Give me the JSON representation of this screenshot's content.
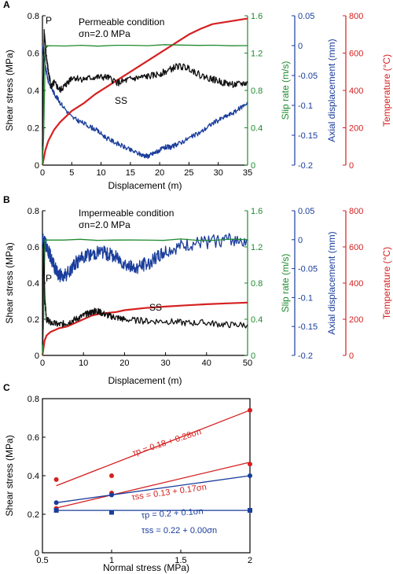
{
  "colors": {
    "shear": "#111111",
    "slip": "#1f8a2e",
    "axial": "#1a3d9c",
    "temp": "#d62020",
    "axis": "#000000"
  },
  "chart_data": [
    {
      "panel": "A",
      "type": "line",
      "annotation_condition": "Permeable condition",
      "annotation_stress": "σn=2.0 MPa",
      "xlabel": "Displacement (m)",
      "xlim": [
        0,
        35
      ],
      "xticks": [
        0,
        5,
        10,
        15,
        20,
        25,
        30,
        35
      ],
      "axes": {
        "shear": {
          "label": "Shear stress (MPa)",
          "lim": [
            0,
            0.8
          ],
          "ticks": [
            0,
            0.2,
            0.4,
            0.6,
            0.8
          ]
        },
        "slip": {
          "label": "Slip rate (m/s)",
          "lim": [
            0,
            1.6
          ],
          "ticks": [
            0,
            0.4,
            0.8,
            1.2,
            1.6
          ]
        },
        "axial": {
          "label": "Axial displacement (mm)",
          "lim": [
            -0.2,
            0.05
          ],
          "ticks": [
            -0.2,
            -0.15,
            -0.1,
            -0.05,
            0,
            0.05
          ]
        },
        "temp": {
          "label": "Temperature (°C)",
          "lim": [
            0,
            800
          ],
          "ticks": [
            0,
            200,
            400,
            600,
            800
          ]
        }
      },
      "labels": {
        "peak": "P",
        "steady": "SS"
      },
      "series": {
        "shear": {
          "x": [
            0,
            0.3,
            0.6,
            1,
            1.5,
            2,
            3,
            4,
            5,
            7,
            9,
            11,
            13,
            15,
            17,
            19,
            21,
            23,
            25,
            27,
            29,
            31,
            33,
            35
          ],
          "y": [
            0.1,
            0.72,
            0.6,
            0.5,
            0.42,
            0.44,
            0.4,
            0.43,
            0.47,
            0.46,
            0.47,
            0.47,
            0.44,
            0.46,
            0.47,
            0.48,
            0.5,
            0.53,
            0.52,
            0.48,
            0.46,
            0.44,
            0.43,
            0.44
          ]
        },
        "slip": {
          "x": [
            0,
            0.2,
            0.5,
            1,
            35
          ],
          "y": [
            0,
            0.3,
            1.26,
            1.28,
            1.28
          ]
        },
        "axial": {
          "x": [
            0,
            0.5,
            1,
            2,
            3,
            5,
            7,
            9,
            11,
            13,
            15,
            17,
            18,
            19,
            20,
            21,
            22,
            23,
            25,
            27,
            29,
            31,
            33,
            35
          ],
          "y": [
            0.0,
            -0.035,
            -0.06,
            -0.08,
            -0.095,
            -0.12,
            -0.13,
            -0.14,
            -0.155,
            -0.165,
            -0.175,
            -0.183,
            -0.185,
            -0.18,
            -0.175,
            -0.17,
            -0.17,
            -0.165,
            -0.155,
            -0.145,
            -0.13,
            -0.12,
            -0.11,
            -0.095
          ]
        },
        "temp": {
          "x": [
            0,
            0.5,
            1,
            2,
            3,
            5,
            7,
            9,
            11,
            13,
            15,
            17,
            19,
            21,
            23,
            25,
            27,
            29,
            31,
            33,
            35
          ],
          "y": [
            0,
            80,
            130,
            190,
            230,
            290,
            330,
            380,
            420,
            460,
            500,
            540,
            580,
            620,
            660,
            700,
            730,
            755,
            765,
            775,
            785
          ]
        }
      }
    },
    {
      "panel": "B",
      "type": "line",
      "annotation_condition": "Impermeable condition",
      "annotation_stress": "σn=2.0 MPa",
      "xlabel": "Displacement (m)",
      "xlim": [
        0,
        50
      ],
      "xticks": [
        0,
        10,
        20,
        30,
        40,
        50
      ],
      "axes": {
        "shear": {
          "label": "Shear stress (MPa)",
          "lim": [
            0,
            0.8
          ],
          "ticks": [
            0,
            0.2,
            0.4,
            0.6,
            0.8
          ]
        },
        "slip": {
          "label": "Slip rate (m/s)",
          "lim": [
            0,
            1.6
          ],
          "ticks": [
            0,
            0.4,
            0.8,
            1.2,
            1.6
          ]
        },
        "axial": {
          "label": "Axial displacement (mm)",
          "lim": [
            -0.2,
            0.05
          ],
          "ticks": [
            -0.2,
            -0.15,
            -0.1,
            -0.05,
            0,
            0.05
          ]
        },
        "temp": {
          "label": "Temperature (°C)",
          "lim": [
            0,
            800
          ],
          "ticks": [
            0,
            200,
            400,
            600,
            800
          ]
        }
      },
      "labels": {
        "peak": "P",
        "steady": "SS"
      },
      "series": {
        "shear": {
          "x": [
            0,
            0.3,
            0.6,
            1,
            2,
            4,
            6,
            8,
            10,
            12,
            13,
            14,
            16,
            18,
            20,
            25,
            30,
            35,
            40,
            45,
            50
          ],
          "y": [
            0.05,
            0.62,
            0.3,
            0.2,
            0.18,
            0.17,
            0.18,
            0.2,
            0.22,
            0.24,
            0.245,
            0.24,
            0.22,
            0.21,
            0.2,
            0.19,
            0.19,
            0.18,
            0.18,
            0.17,
            0.17
          ]
        },
        "slip": {
          "x": [
            0,
            0.3,
            0.6,
            1,
            50
          ],
          "y": [
            0,
            0.4,
            1.26,
            1.28,
            1.28
          ]
        },
        "axial": {
          "x": [
            0,
            1,
            2,
            3,
            4,
            5,
            6,
            8,
            10,
            12,
            14,
            16,
            18,
            20,
            22,
            24,
            26,
            28,
            30,
            35,
            40,
            45,
            50
          ],
          "y": [
            0.0,
            -0.01,
            -0.03,
            -0.05,
            -0.06,
            -0.065,
            -0.06,
            -0.04,
            -0.03,
            -0.025,
            -0.02,
            -0.025,
            -0.03,
            -0.04,
            -0.05,
            -0.045,
            -0.04,
            -0.03,
            -0.02,
            -0.01,
            -0.005,
            0.0,
            0.0
          ],
          "noise_amplitude": 0.012
        },
        "temp": {
          "x": [
            0,
            0.5,
            1,
            2,
            4,
            6,
            8,
            10,
            12,
            14,
            16,
            18,
            20,
            25,
            30,
            35,
            40,
            45,
            50
          ],
          "y": [
            0,
            80,
            110,
            130,
            150,
            160,
            180,
            200,
            220,
            230,
            235,
            240,
            250,
            262,
            270,
            277,
            283,
            288,
            292
          ]
        }
      }
    },
    {
      "panel": "C",
      "type": "scatter",
      "xlabel": "Normal stress (MPa)",
      "ylabel": "Shear stress (MPa)",
      "xlim": [
        0.5,
        2
      ],
      "ylim": [
        0,
        0.8
      ],
      "xticks": [
        0.5,
        1,
        1.5,
        2
      ],
      "yticks": [
        0,
        0.2,
        0.4,
        0.6,
        0.8
      ],
      "series": [
        {
          "marker": "circle",
          "color": "#d62020",
          "x": [
            0.6,
            1.0,
            2.0
          ],
          "y": [
            0.38,
            0.4,
            0.74
          ]
        },
        {
          "marker": "circle",
          "color": "#d62020",
          "x": [
            0.6,
            1.0,
            2.0
          ],
          "y": [
            0.23,
            0.31,
            0.46
          ]
        },
        {
          "marker": "circle",
          "color": "#1a3d9c",
          "x": [
            0.6,
            1.0,
            2.0
          ],
          "y": [
            0.26,
            0.3,
            0.4
          ]
        },
        {
          "marker": "square",
          "color": "#1a3d9c",
          "x": [
            0.6,
            1.0,
            2.0
          ],
          "y": [
            0.22,
            0.21,
            0.22
          ]
        }
      ],
      "fits": [
        {
          "text": "τp = 0.18 + 0.28σn",
          "color": "#d62020",
          "intercept": 0.18,
          "slope": 0.28,
          "x_range": [
            0.6,
            2.0
          ]
        },
        {
          "text": "τss = 0.13 + 0.17σn",
          "color": "#d62020",
          "intercept": 0.13,
          "slope": 0.17,
          "x_range": [
            0.6,
            2.0
          ]
        },
        {
          "text": "τp = 0.2 + 0.1σn",
          "color": "#1a3d9c",
          "intercept": 0.2,
          "slope": 0.1,
          "x_range": [
            0.6,
            2.0
          ]
        },
        {
          "text": "τss = 0.22 + 0.00σn",
          "color": "#1a3d9c",
          "intercept": 0.22,
          "slope": 0.0,
          "x_range": [
            0.6,
            2.0
          ]
        }
      ]
    }
  ]
}
